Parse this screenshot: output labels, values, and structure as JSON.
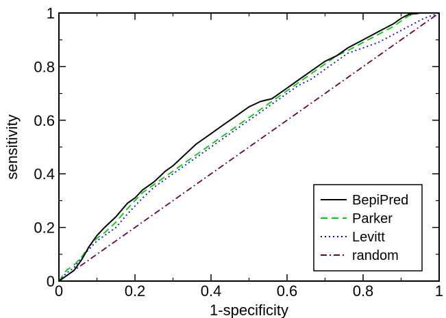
{
  "chart_data": {
    "type": "line",
    "title": "",
    "xlabel": "1-specificity",
    "ylabel": "sensitivity",
    "xlim": [
      0,
      1
    ],
    "ylim": [
      0,
      1
    ],
    "x_ticks": [
      {
        "value": 0,
        "label": "0"
      },
      {
        "value": 0.2,
        "label": "0.2"
      },
      {
        "value": 0.4,
        "label": "0.4"
      },
      {
        "value": 0.6,
        "label": "0.6"
      },
      {
        "value": 0.8,
        "label": "0.8"
      },
      {
        "value": 1,
        "label": "1"
      }
    ],
    "y_ticks": [
      {
        "value": 0,
        "label": "0"
      },
      {
        "value": 0.2,
        "label": "0.2"
      },
      {
        "value": 0.4,
        "label": "0.4"
      },
      {
        "value": 0.6,
        "label": "0.6"
      },
      {
        "value": 0.8,
        "label": "0.8"
      },
      {
        "value": 1,
        "label": "1"
      }
    ],
    "grid": false,
    "legend": {
      "position": "bottom-right"
    },
    "series": [
      {
        "name": "BepiPred",
        "color": "#000000",
        "dash": "solid",
        "points": [
          [
            0,
            0
          ],
          [
            0.02,
            0.02
          ],
          [
            0.04,
            0.04
          ],
          [
            0.06,
            0.08
          ],
          [
            0.08,
            0.13
          ],
          [
            0.1,
            0.17
          ],
          [
            0.12,
            0.2
          ],
          [
            0.15,
            0.24
          ],
          [
            0.18,
            0.29
          ],
          [
            0.2,
            0.31
          ],
          [
            0.22,
            0.34
          ],
          [
            0.25,
            0.37
          ],
          [
            0.28,
            0.41
          ],
          [
            0.3,
            0.43
          ],
          [
            0.33,
            0.47
          ],
          [
            0.36,
            0.51
          ],
          [
            0.4,
            0.55
          ],
          [
            0.43,
            0.58
          ],
          [
            0.46,
            0.61
          ],
          [
            0.5,
            0.65
          ],
          [
            0.53,
            0.67
          ],
          [
            0.56,
            0.68
          ],
          [
            0.6,
            0.72
          ],
          [
            0.63,
            0.75
          ],
          [
            0.66,
            0.78
          ],
          [
            0.7,
            0.82
          ],
          [
            0.73,
            0.84
          ],
          [
            0.76,
            0.87
          ],
          [
            0.8,
            0.9
          ],
          [
            0.84,
            0.93
          ],
          [
            0.88,
            0.96
          ],
          [
            0.9,
            0.98
          ],
          [
            0.92,
            0.995
          ],
          [
            0.95,
            1
          ],
          [
            1,
            1
          ]
        ]
      },
      {
        "name": "Parker",
        "color": "#00cc00",
        "dash": "dashed",
        "points": [
          [
            0,
            0
          ],
          [
            0.02,
            0.04
          ],
          [
            0.04,
            0.06
          ],
          [
            0.06,
            0.09
          ],
          [
            0.08,
            0.13
          ],
          [
            0.1,
            0.16
          ],
          [
            0.12,
            0.18
          ],
          [
            0.15,
            0.22
          ],
          [
            0.18,
            0.27
          ],
          [
            0.2,
            0.3
          ],
          [
            0.22,
            0.33
          ],
          [
            0.25,
            0.36
          ],
          [
            0.28,
            0.39
          ],
          [
            0.3,
            0.41
          ],
          [
            0.33,
            0.44
          ],
          [
            0.36,
            0.47
          ],
          [
            0.4,
            0.51
          ],
          [
            0.43,
            0.54
          ],
          [
            0.46,
            0.57
          ],
          [
            0.5,
            0.61
          ],
          [
            0.53,
            0.64
          ],
          [
            0.56,
            0.67
          ],
          [
            0.6,
            0.71
          ],
          [
            0.63,
            0.74
          ],
          [
            0.66,
            0.77
          ],
          [
            0.7,
            0.81
          ],
          [
            0.73,
            0.84
          ],
          [
            0.76,
            0.86
          ],
          [
            0.8,
            0.89
          ],
          [
            0.84,
            0.92
          ],
          [
            0.88,
            0.95
          ],
          [
            0.92,
            0.99
          ],
          [
            0.95,
            1
          ],
          [
            1,
            1
          ]
        ]
      },
      {
        "name": "Levitt",
        "color": "#0000ff",
        "dash": "dotted",
        "points": [
          [
            0,
            0
          ],
          [
            0.02,
            0.03
          ],
          [
            0.04,
            0.05
          ],
          [
            0.06,
            0.09
          ],
          [
            0.08,
            0.12
          ],
          [
            0.1,
            0.15
          ],
          [
            0.12,
            0.17
          ],
          [
            0.15,
            0.2
          ],
          [
            0.18,
            0.25
          ],
          [
            0.2,
            0.28
          ],
          [
            0.22,
            0.31
          ],
          [
            0.25,
            0.35
          ],
          [
            0.28,
            0.38
          ],
          [
            0.3,
            0.4
          ],
          [
            0.33,
            0.43
          ],
          [
            0.36,
            0.46
          ],
          [
            0.4,
            0.5
          ],
          [
            0.43,
            0.53
          ],
          [
            0.46,
            0.56
          ],
          [
            0.5,
            0.6
          ],
          [
            0.53,
            0.63
          ],
          [
            0.56,
            0.66
          ],
          [
            0.6,
            0.7
          ],
          [
            0.63,
            0.73
          ],
          [
            0.66,
            0.75
          ],
          [
            0.7,
            0.79
          ],
          [
            0.73,
            0.82
          ],
          [
            0.76,
            0.85
          ],
          [
            0.8,
            0.87
          ],
          [
            0.84,
            0.89
          ],
          [
            0.88,
            0.92
          ],
          [
            0.92,
            0.95
          ],
          [
            0.96,
            0.98
          ],
          [
            1,
            1
          ]
        ]
      },
      {
        "name": "random",
        "color": "#660044",
        "dash": "dashdot",
        "points": [
          [
            0,
            0
          ],
          [
            1,
            1
          ]
        ]
      }
    ]
  }
}
